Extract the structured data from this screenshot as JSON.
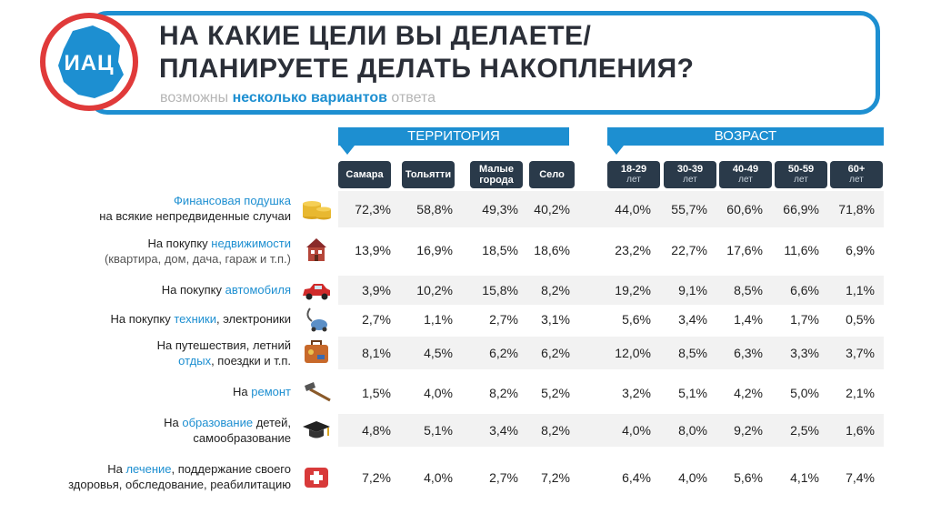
{
  "header": {
    "logo_text": "ИАЦ",
    "title_line1": "НА КАКИЕ ЦЕЛИ ВЫ ДЕЛАЕТЕ/",
    "title_line2": "ПЛАНИРУЕТЕ ДЕЛАТЬ НАКОПЛЕНИЯ?",
    "subtitle_pre": "возможны ",
    "subtitle_hl": "несколько вариантов",
    "subtitle_post": " ответа"
  },
  "groups": {
    "territory": "ТЕРРИТОРИЯ",
    "age": "ВОЗРАСТ"
  },
  "columns": {
    "samara": "Самара",
    "tolyatti": "Тольятти",
    "small1": "Малые",
    "small2": "города",
    "selo": "Село",
    "a1": "18-29",
    "a2": "30-39",
    "a3": "40-49",
    "a4": "50-59",
    "a5": "60+",
    "let": "лет"
  },
  "colors": {
    "accent": "#1d8fd1",
    "header_cell": "#2a3a4a",
    "band": "#f2f2f2",
    "logo_red": "#e03a3a"
  },
  "rows": [
    {
      "l1": "Финансовая подушка",
      "l2": "на всякие непредвиденные случаи",
      "icon": "coins-icon"
    },
    {
      "l1a": "На покупку ",
      "l1b": "недвижимости",
      "l2": "(квартира, дом, дача, гараж и т.п.)",
      "icon": "house-icon"
    },
    {
      "l1a": "На покупку ",
      "l1b": "автомобиля",
      "icon": "car-icon"
    },
    {
      "l1a": "На покупку ",
      "l1b": "техники",
      "l1c": ", электроники",
      "icon": "vacuum-icon"
    },
    {
      "l1": "На путешествия, летний",
      "l2b": "отдых",
      "l2c": ", поездки и т.п.",
      "icon": "suitcase-icon"
    },
    {
      "l1a": "На ",
      "l1b": "ремонт",
      "icon": "hammer-icon"
    },
    {
      "l1a": "На ",
      "l1b": "образование",
      "l1c": " детей,",
      "l2": "самообразование",
      "icon": "graduation-cap-icon"
    },
    {
      "l1a": "На ",
      "l1b": "лечение",
      "l1c": ", поддержание своего",
      "l2": "здоровья, обследование, реабилитацию",
      "icon": "first-aid-icon"
    }
  ],
  "chart_data": {
    "type": "table",
    "title": "НА КАКИЕ ЦЕЛИ ВЫ ДЕЛАЕТЕ/ ПЛАНИРУЕТЕ ДЕЛАТЬ НАКОПЛЕНИЯ?",
    "columns": [
      "Самара",
      "Тольятти",
      "Малые города",
      "Село",
      "18-29 лет",
      "30-39 лет",
      "40-49 лет",
      "50-59 лет",
      "60+ лет"
    ],
    "values": [
      [
        "72,3%",
        "58,8%",
        "49,3%",
        "40,2%",
        "44,0%",
        "55,7%",
        "60,6%",
        "66,9%",
        "71,8%"
      ],
      [
        "13,9%",
        "16,9%",
        "18,5%",
        "18,6%",
        "23,2%",
        "22,7%",
        "17,6%",
        "11,6%",
        "6,9%"
      ],
      [
        "3,9%",
        "10,2%",
        "15,8%",
        "8,2%",
        "19,2%",
        "9,1%",
        "8,5%",
        "6,6%",
        "1,1%"
      ],
      [
        "2,7%",
        "1,1%",
        "2,7%",
        "3,1%",
        "5,6%",
        "3,4%",
        "1,4%",
        "1,7%",
        "0,5%"
      ],
      [
        "8,1%",
        "4,5%",
        "6,2%",
        "6,2%",
        "12,0%",
        "8,5%",
        "6,3%",
        "3,3%",
        "3,7%"
      ],
      [
        "1,5%",
        "4,0%",
        "8,2%",
        "5,2%",
        "3,2%",
        "5,1%",
        "4,2%",
        "5,0%",
        "2,1%"
      ],
      [
        "4,8%",
        "5,1%",
        "3,4%",
        "8,2%",
        "4,0%",
        "8,0%",
        "9,2%",
        "2,5%",
        "1,6%"
      ],
      [
        "7,2%",
        "4,0%",
        "2,7%",
        "7,2%",
        "6,4%",
        "4,0%",
        "5,6%",
        "4,1%",
        "7,4%"
      ]
    ]
  }
}
